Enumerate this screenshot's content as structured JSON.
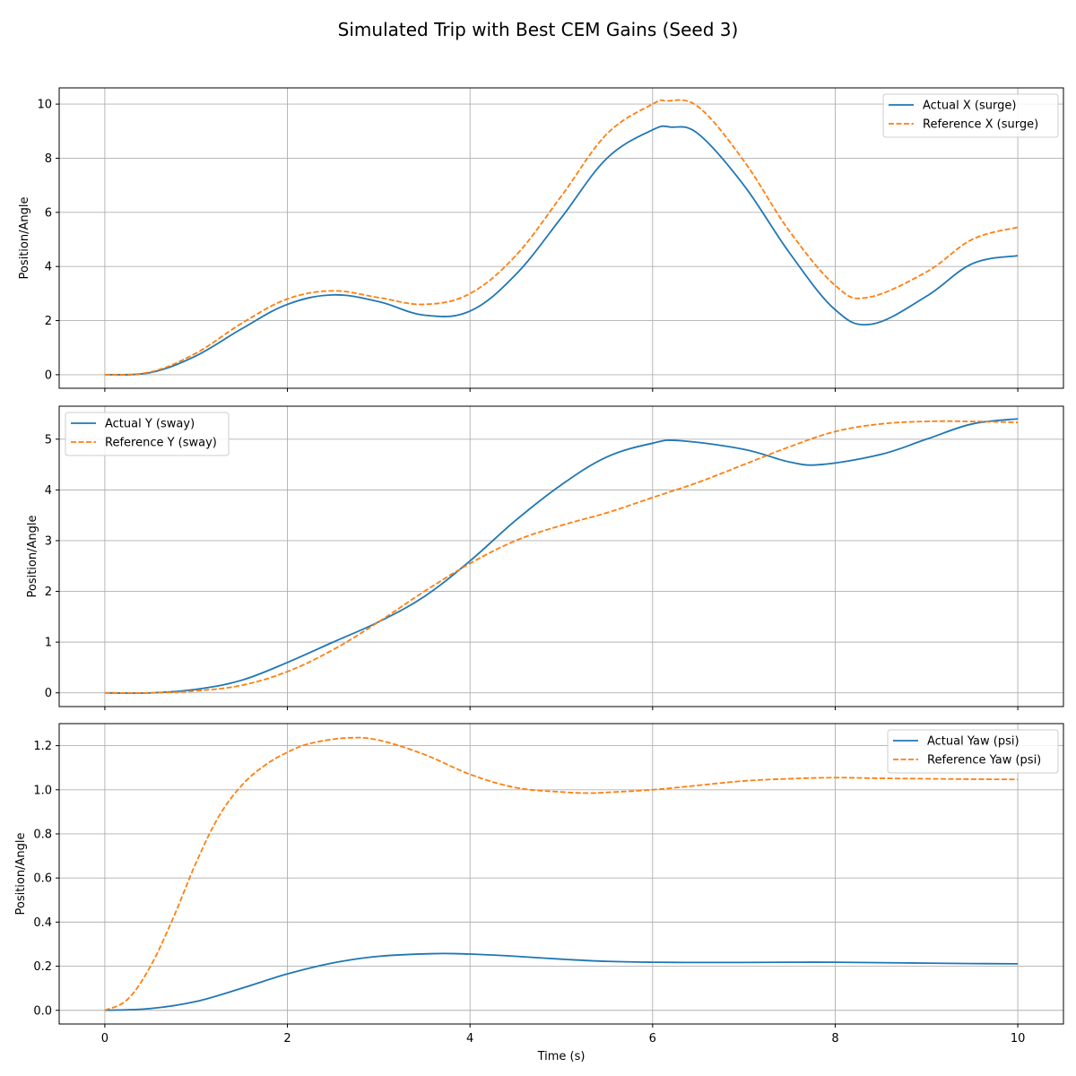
{
  "title": "Simulated Trip with Best CEM Gains (Seed 3)",
  "colors": {
    "actual": "#1f77b4",
    "reference": "#ff7f0e"
  },
  "chart_data": [
    {
      "type": "line",
      "xlabel": "",
      "ylabel": "Position/Angle",
      "xlim": [
        -0.5,
        10.5
      ],
      "ylim": [
        -0.5,
        10.6
      ],
      "xticks": [
        0,
        2,
        4,
        6,
        8,
        10
      ],
      "yticks": [
        0,
        2,
        4,
        6,
        8,
        10
      ],
      "grid": true,
      "legend_position": "top-right",
      "series": [
        {
          "name": "Actual X (surge)",
          "style": "solid",
          "x": [
            0,
            0.5,
            1,
            1.5,
            2,
            2.5,
            3,
            3.5,
            4,
            4.5,
            5,
            5.5,
            6,
            6.2,
            6.5,
            7,
            7.5,
            8,
            8.4,
            9,
            9.5,
            10
          ],
          "y": [
            0,
            0.08,
            0.7,
            1.7,
            2.6,
            2.95,
            2.7,
            2.2,
            2.35,
            3.7,
            5.8,
            8.0,
            9.05,
            9.15,
            8.9,
            7.0,
            4.5,
            2.4,
            1.87,
            2.9,
            4.1,
            4.4
          ]
        },
        {
          "name": "Reference X (surge)",
          "style": "dashed",
          "x": [
            0,
            0.5,
            1,
            1.5,
            2,
            2.5,
            3,
            3.5,
            4,
            4.5,
            5,
            5.5,
            6,
            6.15,
            6.5,
            7,
            7.5,
            8,
            8.35,
            9,
            9.5,
            10
          ],
          "y": [
            0,
            0.1,
            0.8,
            1.9,
            2.8,
            3.1,
            2.85,
            2.6,
            3.0,
            4.4,
            6.6,
            8.9,
            10.0,
            10.12,
            9.9,
            7.9,
            5.3,
            3.3,
            2.85,
            3.8,
            5.0,
            5.45
          ]
        }
      ]
    },
    {
      "type": "line",
      "xlabel": "",
      "ylabel": "Position/Angle",
      "xlim": [
        -0.5,
        10.5
      ],
      "ylim": [
        -0.27,
        5.65
      ],
      "xticks": [
        0,
        2,
        4,
        6,
        8,
        10
      ],
      "yticks": [
        0,
        1,
        2,
        3,
        4,
        5
      ],
      "grid": true,
      "legend_position": "top-left",
      "series": [
        {
          "name": "Actual Y (sway)",
          "style": "solid",
          "x": [
            0,
            0.5,
            1,
            1.5,
            2,
            2.5,
            3,
            3.5,
            4,
            4.5,
            5,
            5.5,
            6,
            6.3,
            7,
            7.5,
            7.85,
            8.5,
            9,
            9.5,
            10
          ],
          "y": [
            0,
            0.0,
            0.07,
            0.25,
            0.6,
            1.0,
            1.4,
            1.9,
            2.6,
            3.4,
            4.1,
            4.65,
            4.92,
            4.97,
            4.8,
            4.55,
            4.5,
            4.7,
            5.0,
            5.3,
            5.4
          ]
        },
        {
          "name": "Reference Y (sway)",
          "style": "dashed",
          "x": [
            0,
            0.5,
            1,
            1.5,
            2,
            2.5,
            3,
            3.5,
            4,
            4.5,
            5,
            5.5,
            6,
            6.5,
            7,
            7.5,
            8,
            8.5,
            9,
            9.5,
            10
          ],
          "y": [
            0,
            0.0,
            0.04,
            0.15,
            0.42,
            0.85,
            1.4,
            2.0,
            2.55,
            3.0,
            3.3,
            3.55,
            3.85,
            4.15,
            4.5,
            4.85,
            5.15,
            5.3,
            5.35,
            5.35,
            5.33
          ]
        }
      ]
    },
    {
      "type": "line",
      "xlabel": "Time (s)",
      "ylabel": "Position/Angle",
      "xlim": [
        -0.5,
        10.5
      ],
      "ylim": [
        -0.062,
        1.3
      ],
      "xticks": [
        0,
        2,
        4,
        6,
        8,
        10
      ],
      "yticks": [
        0.0,
        0.2,
        0.4,
        0.6,
        0.8,
        1.0,
        1.2
      ],
      "grid": true,
      "legend_position": "top-right",
      "series": [
        {
          "name": "Actual Yaw (psi)",
          "style": "solid",
          "x": [
            0,
            0.5,
            1,
            1.5,
            2,
            2.5,
            3,
            3.6,
            4,
            4.5,
            5,
            5.5,
            6,
            6.5,
            7,
            7.5,
            8,
            8.5,
            9,
            9.5,
            10
          ],
          "y": [
            0,
            0.008,
            0.04,
            0.1,
            0.165,
            0.215,
            0.245,
            0.257,
            0.255,
            0.245,
            0.232,
            0.222,
            0.218,
            0.217,
            0.217,
            0.218,
            0.218,
            0.216,
            0.214,
            0.212,
            0.211
          ]
        },
        {
          "name": "Reference Yaw (psi)",
          "style": "dashed",
          "x": [
            0,
            0.25,
            0.5,
            0.75,
            1,
            1.25,
            1.5,
            1.75,
            2,
            2.25,
            2.65,
            3,
            3.5,
            4,
            4.5,
            5,
            5.3,
            5.5,
            6,
            6.5,
            7,
            7.5,
            8,
            8.5,
            9,
            9.5,
            10
          ],
          "y": [
            0,
            0.05,
            0.2,
            0.42,
            0.67,
            0.88,
            1.02,
            1.11,
            1.17,
            1.21,
            1.235,
            1.225,
            1.16,
            1.07,
            1.01,
            0.99,
            0.985,
            0.988,
            1.0,
            1.02,
            1.04,
            1.05,
            1.055,
            1.052,
            1.05,
            1.048,
            1.047
          ]
        }
      ]
    }
  ]
}
